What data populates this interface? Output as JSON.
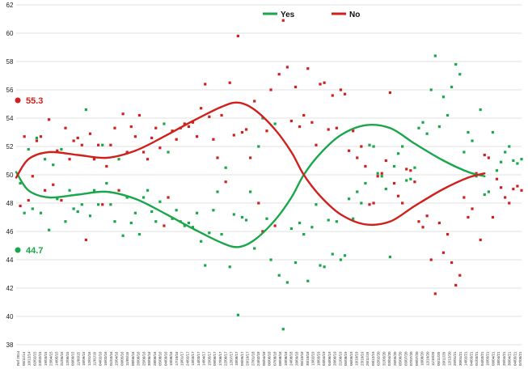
{
  "chart_data": {
    "type": "scatter",
    "ylim": [
      38,
      62
    ],
    "yticks": [
      38,
      40,
      42,
      44,
      46,
      48,
      50,
      52,
      54,
      56,
      58,
      60,
      62
    ],
    "grid": "horizontal",
    "legend_position": "top-center",
    "colors": {
      "yes": "#1aa64a",
      "no": "#d0201c"
    },
    "x_labels": [
      "Ref 2014",
      "05/11/14",
      "10/12/14",
      "02/02/15",
      "23/02/15",
      "19/03/15",
      "23/04/15",
      "14/05/15",
      "21/05/15",
      "12/06/15",
      "09/09/15",
      "11/09/15",
      "16/09/15",
      "12/01/16",
      "11/01/16",
      "04/02/16",
      "16/02/16",
      "01/03/16",
      "15/04/16",
      "09/05/16",
      "11/05/16",
      "08/06/16",
      "26/06/16",
      "25/06/16",
      "30/06/16",
      "28/06/16",
      "05/08/16",
      "04/09/16",
      "10/08/16",
      "17/10/16",
      "19/01/17",
      "24/02/17",
      "13/03/17",
      "14/03/17",
      "14/04/17",
      "15/05/17",
      "09/06/17",
      "17/06/17",
      "22/06/17",
      "12/07/17",
      "18/08/17",
      "09/09/17",
      "29/10/17",
      "27/01/18",
      "24/02/18",
      "05/04/18",
      "06/06/18",
      "07/08/18",
      "08/08/18",
      "10/08/18",
      "24/08/18",
      "20/09/18",
      "05/10/18",
      "30/10/18",
      "13/02/19",
      "18/03/19",
      "03/04/19",
      "04/06/19",
      "20/06/19",
      "21/06/19",
      "05/08/19",
      "06/09/19",
      "19/10/19",
      "23/10/19",
      "26/11/19",
      "09/12/19",
      "02/02/20",
      "31/03/20",
      "03/04/20",
      "26/05/20",
      "05/06/20",
      "03/07/20",
      "07/07/20",
      "09/07/20",
      "10/08/20",
      "12/10/20",
      "11/10/20",
      "05/11/20",
      "20/11/20",
      "12/12/20",
      "25/01/21",
      "30/01/21",
      "14/02/21",
      "04/03/21",
      "01/03/21",
      "04/03/21",
      "16/03/21",
      "09/04/21",
      "18/04/21",
      "25/04/21",
      "30/04/21",
      "04/05/21",
      "07/05/21"
    ],
    "series": [
      {
        "name": "Yes",
        "color": "#1aa64a",
        "end_value": "44.7",
        "trend": [
          [
            0,
            50.2
          ],
          [
            3,
            48.9
          ],
          [
            8,
            48.4
          ],
          [
            15,
            48.6
          ],
          [
            22,
            48.8
          ],
          [
            29,
            48.3
          ],
          [
            36,
            47.3
          ],
          [
            43,
            46.2
          ],
          [
            50,
            45.2
          ],
          [
            54,
            44.9
          ],
          [
            58,
            45.4
          ],
          [
            63,
            46.8
          ],
          [
            67,
            48.4
          ],
          [
            70,
            50.0
          ],
          [
            74,
            51.5
          ],
          [
            79,
            52.8
          ],
          [
            85,
            53.5
          ],
          [
            91,
            53.3
          ],
          [
            97,
            52.2
          ],
          [
            104,
            51.0
          ],
          [
            110,
            50.2
          ],
          [
            114,
            49.9
          ]
        ],
        "points": [
          [
            1,
            49.4
          ],
          [
            2,
            47.3
          ],
          [
            3,
            51.8
          ],
          [
            4,
            47.6
          ],
          [
            5,
            52.6
          ],
          [
            6,
            47.3
          ],
          [
            7,
            51.1
          ],
          [
            8,
            46.1
          ],
          [
            9,
            50.7
          ],
          [
            10,
            48.3
          ],
          [
            11,
            51.8
          ],
          [
            12,
            46.7
          ],
          [
            13,
            48.9
          ],
          [
            14,
            47.6
          ],
          [
            15,
            47.4
          ],
          [
            16,
            47.9
          ],
          [
            17,
            54.6
          ],
          [
            18,
            47.1
          ],
          [
            19,
            48.9
          ],
          [
            20,
            47.9
          ],
          [
            21,
            52.1
          ],
          [
            22,
            49.4
          ],
          [
            23,
            47.9
          ],
          [
            24,
            46.7
          ],
          [
            25,
            51.1
          ],
          [
            26,
            45.7
          ],
          [
            27,
            48.4
          ],
          [
            28,
            46.6
          ],
          [
            29,
            47.3
          ],
          [
            30,
            45.8
          ],
          [
            31,
            48.4
          ],
          [
            32,
            48.9
          ],
          [
            33,
            47.4
          ],
          [
            34,
            46.7
          ],
          [
            35,
            48.1
          ],
          [
            36,
            53.6
          ],
          [
            37,
            51.6
          ],
          [
            38,
            46.9
          ],
          [
            39,
            47.5
          ],
          [
            40,
            46.7
          ],
          [
            41,
            46.4
          ],
          [
            42,
            46.6
          ],
          [
            43,
            46.3
          ],
          [
            44,
            47.3
          ],
          [
            45,
            45.3
          ],
          [
            46,
            43.6
          ],
          [
            47,
            45.9
          ],
          [
            48,
            47.5
          ],
          [
            49,
            48.8
          ],
          [
            50,
            45.8
          ],
          [
            51,
            50.5
          ],
          [
            52,
            43.5
          ],
          [
            53,
            47.2
          ],
          [
            54,
            40.1
          ],
          [
            55,
            47.0
          ],
          [
            56,
            46.8
          ],
          [
            57,
            48.8
          ],
          [
            58,
            44.8
          ],
          [
            59,
            52.0
          ],
          [
            60,
            54.0
          ],
          [
            61,
            46.9
          ],
          [
            62,
            44.0
          ],
          [
            63,
            53.6
          ],
          [
            64,
            42.9
          ],
          [
            65,
            39.1
          ],
          [
            66,
            42.4
          ],
          [
            67,
            46.2
          ],
          [
            68,
            43.8
          ],
          [
            69,
            46.6
          ],
          [
            70,
            45.8
          ],
          [
            71,
            42.5
          ],
          [
            72,
            46.3
          ],
          [
            73,
            47.9
          ],
          [
            74,
            43.6
          ],
          [
            75,
            43.5
          ],
          [
            76,
            46.8
          ],
          [
            77,
            44.4
          ],
          [
            78,
            46.7
          ],
          [
            79,
            44.0
          ],
          [
            80,
            44.3
          ],
          [
            81,
            48.3
          ],
          [
            82,
            46.9
          ],
          [
            83,
            48.8
          ],
          [
            84,
            48.0
          ],
          [
            85,
            49.4
          ],
          [
            86,
            52.1
          ],
          [
            87,
            52.0
          ],
          [
            88,
            50.1
          ],
          [
            89,
            49.9
          ],
          [
            90,
            49.0
          ],
          [
            91,
            44.2
          ],
          [
            92,
            50.6
          ],
          [
            93,
            51.5
          ],
          [
            94,
            52.0
          ],
          [
            95,
            49.6
          ],
          [
            96,
            49.7
          ],
          [
            97,
            50.5
          ],
          [
            98,
            53.3
          ],
          [
            99,
            53.7
          ],
          [
            100,
            52.9
          ],
          [
            101,
            56.0
          ],
          [
            102,
            58.4
          ],
          [
            103,
            53.4
          ],
          [
            104,
            55.5
          ],
          [
            105,
            54.2
          ],
          [
            106,
            56.2
          ],
          [
            107,
            57.8
          ],
          [
            108,
            57.1
          ],
          [
            109,
            51.6
          ],
          [
            110,
            53.0
          ],
          [
            111,
            52.4
          ],
          [
            112,
            49.9
          ],
          [
            113,
            54.6
          ],
          [
            114,
            48.6
          ],
          [
            115,
            48.8
          ],
          [
            116,
            53.0
          ],
          [
            117,
            50.3
          ],
          [
            118,
            50.9
          ],
          [
            119,
            51.6
          ],
          [
            120,
            52.0
          ],
          [
            121,
            51.0
          ],
          [
            122,
            50.8
          ],
          [
            123,
            51.1
          ]
        ]
      },
      {
        "name": "No",
        "color": "#d0201c",
        "end_value": "55.3",
        "trend": [
          [
            0,
            49.8
          ],
          [
            3,
            51.1
          ],
          [
            8,
            51.6
          ],
          [
            15,
            51.4
          ],
          [
            22,
            51.2
          ],
          [
            29,
            51.7
          ],
          [
            36,
            52.7
          ],
          [
            43,
            53.8
          ],
          [
            50,
            54.8
          ],
          [
            54,
            55.1
          ],
          [
            58,
            54.6
          ],
          [
            63,
            53.2
          ],
          [
            67,
            51.6
          ],
          [
            70,
            50.0
          ],
          [
            74,
            48.5
          ],
          [
            79,
            47.2
          ],
          [
            85,
            46.5
          ],
          [
            91,
            46.7
          ],
          [
            97,
            47.8
          ],
          [
            104,
            49.0
          ],
          [
            110,
            49.8
          ],
          [
            114,
            50.1
          ]
        ],
        "points": [
          [
            1,
            47.8
          ],
          [
            2,
            52.7
          ],
          [
            3,
            48.2
          ],
          [
            4,
            49.9
          ],
          [
            5,
            52.4
          ],
          [
            6,
            52.7
          ],
          [
            7,
            48.9
          ],
          [
            8,
            53.9
          ],
          [
            9,
            49.3
          ],
          [
            10,
            51.7
          ],
          [
            11,
            48.2
          ],
          [
            12,
            53.3
          ],
          [
            13,
            51.1
          ],
          [
            14,
            52.4
          ],
          [
            15,
            52.6
          ],
          [
            16,
            52.1
          ],
          [
            17,
            45.4
          ],
          [
            18,
            52.9
          ],
          [
            19,
            51.1
          ],
          [
            20,
            52.1
          ],
          [
            21,
            47.9
          ],
          [
            22,
            50.6
          ],
          [
            23,
            52.1
          ],
          [
            24,
            53.3
          ],
          [
            25,
            48.9
          ],
          [
            26,
            54.3
          ],
          [
            27,
            51.6
          ],
          [
            28,
            53.4
          ],
          [
            29,
            52.7
          ],
          [
            30,
            54.2
          ],
          [
            31,
            51.6
          ],
          [
            32,
            51.1
          ],
          [
            33,
            52.6
          ],
          [
            34,
            53.3
          ],
          [
            35,
            51.9
          ],
          [
            36,
            46.4
          ],
          [
            37,
            48.4
          ],
          [
            38,
            53.1
          ],
          [
            39,
            52.5
          ],
          [
            40,
            53.3
          ],
          [
            41,
            53.6
          ],
          [
            42,
            53.4
          ],
          [
            43,
            53.7
          ],
          [
            44,
            52.7
          ],
          [
            45,
            54.7
          ],
          [
            46,
            56.4
          ],
          [
            47,
            54.1
          ],
          [
            48,
            52.5
          ],
          [
            49,
            51.2
          ],
          [
            50,
            54.2
          ],
          [
            51,
            49.5
          ],
          [
            52,
            56.5
          ],
          [
            53,
            52.8
          ],
          [
            54,
            59.8
          ],
          [
            55,
            53.0
          ],
          [
            56,
            53.2
          ],
          [
            57,
            51.2
          ],
          [
            58,
            55.2
          ],
          [
            59,
            48.0
          ],
          [
            60,
            46.0
          ],
          [
            61,
            53.1
          ],
          [
            62,
            56.0
          ],
          [
            63,
            46.4
          ],
          [
            64,
            57.1
          ],
          [
            65,
            60.9
          ],
          [
            66,
            57.6
          ],
          [
            67,
            53.8
          ],
          [
            68,
            56.2
          ],
          [
            69,
            53.4
          ],
          [
            70,
            54.2
          ],
          [
            71,
            57.5
          ],
          [
            72,
            53.7
          ],
          [
            73,
            52.1
          ],
          [
            74,
            56.4
          ],
          [
            75,
            56.5
          ],
          [
            76,
            53.2
          ],
          [
            77,
            55.6
          ],
          [
            78,
            53.3
          ],
          [
            79,
            56.0
          ],
          [
            80,
            55.7
          ],
          [
            81,
            51.7
          ],
          [
            82,
            53.1
          ],
          [
            83,
            51.2
          ],
          [
            84,
            52.0
          ],
          [
            85,
            50.6
          ],
          [
            86,
            47.9
          ],
          [
            87,
            48.0
          ],
          [
            88,
            49.9
          ],
          [
            89,
            50.1
          ],
          [
            90,
            51.0
          ],
          [
            91,
            55.8
          ],
          [
            92,
            49.4
          ],
          [
            93,
            48.5
          ],
          [
            94,
            48.0
          ],
          [
            95,
            50.4
          ],
          [
            96,
            50.3
          ],
          [
            97,
            49.5
          ],
          [
            98,
            46.7
          ],
          [
            99,
            46.3
          ],
          [
            100,
            47.1
          ],
          [
            101,
            44.0
          ],
          [
            102,
            41.6
          ],
          [
            103,
            46.6
          ],
          [
            104,
            44.5
          ],
          [
            105,
            45.8
          ],
          [
            106,
            43.8
          ],
          [
            107,
            42.2
          ],
          [
            108,
            42.9
          ],
          [
            109,
            48.4
          ],
          [
            110,
            47.0
          ],
          [
            111,
            47.6
          ],
          [
            112,
            50.1
          ],
          [
            113,
            45.4
          ],
          [
            114,
            51.4
          ],
          [
            115,
            51.2
          ],
          [
            116,
            47.0
          ],
          [
            117,
            49.7
          ],
          [
            118,
            49.1
          ],
          [
            119,
            48.4
          ],
          [
            120,
            48.0
          ],
          [
            121,
            49.0
          ],
          [
            122,
            49.2
          ],
          [
            123,
            48.9
          ]
        ]
      }
    ]
  }
}
